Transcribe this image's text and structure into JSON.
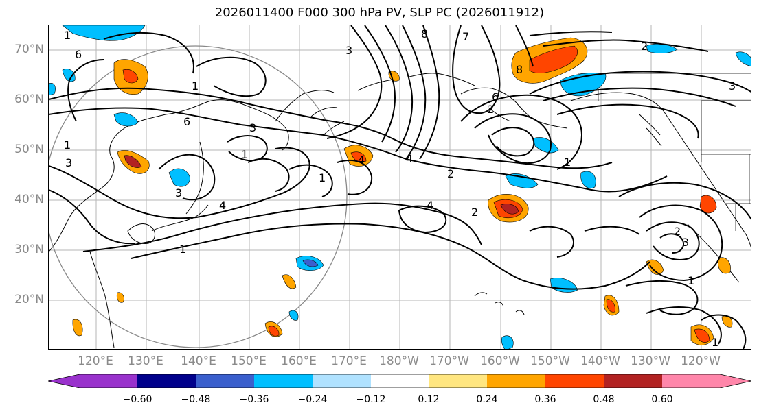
{
  "title": "2026011400 F000 300 hPa PV, SLP PC (2026011912)",
  "latitude_labels": [
    "70°N",
    "60°N",
    "50°N",
    "40°N",
    "30°N",
    "20°N"
  ],
  "longitude_labels": [
    "120°E",
    "130°E",
    "140°E",
    "150°E",
    "160°E",
    "170°E",
    "180°W",
    "170°W",
    "160°W",
    "150°W",
    "140°W",
    "130°W",
    "120°W"
  ],
  "colorbar": {
    "ticks": [
      "−0.60",
      "−0.48",
      "−0.36",
      "−0.24",
      "−0.12",
      "0.12",
      "0.24",
      "0.36",
      "0.48",
      "0.60"
    ],
    "colors": [
      "#9932cc",
      "#00008b",
      "#3a5fcd",
      "#00bfff",
      "#b0e2ff",
      "#ffffff",
      "#ffe680",
      "#ffa500",
      "#ff4500",
      "#b22222",
      "#ff86aa"
    ]
  },
  "contour_labels": {
    "nw_top": "1",
    "nw_6": "6",
    "kam_1": "1",
    "west_1": "1",
    "west_3": "3",
    "japan_6": "6",
    "japan_3": "3",
    "okhotsk_3": "3",
    "eq_1a": "1",
    "pac_4a": "4",
    "pac_4b": "4",
    "pac_4c": "4",
    "pac_2a": "2",
    "pac_2b": "2",
    "pac_1": "1",
    "japan_4": "4",
    "bering_8": "8",
    "bering_7": "7",
    "bering_3": "3",
    "alaska_6": "6",
    "alaska_2": "2",
    "goa_1": "1",
    "ne_2": "2",
    "ne_3": "3",
    "calif_2": "2",
    "calif_3": "3",
    "sub_1": "1",
    "se_1": "1",
    "gulf_8": "8",
    "south_1": "1"
  }
}
